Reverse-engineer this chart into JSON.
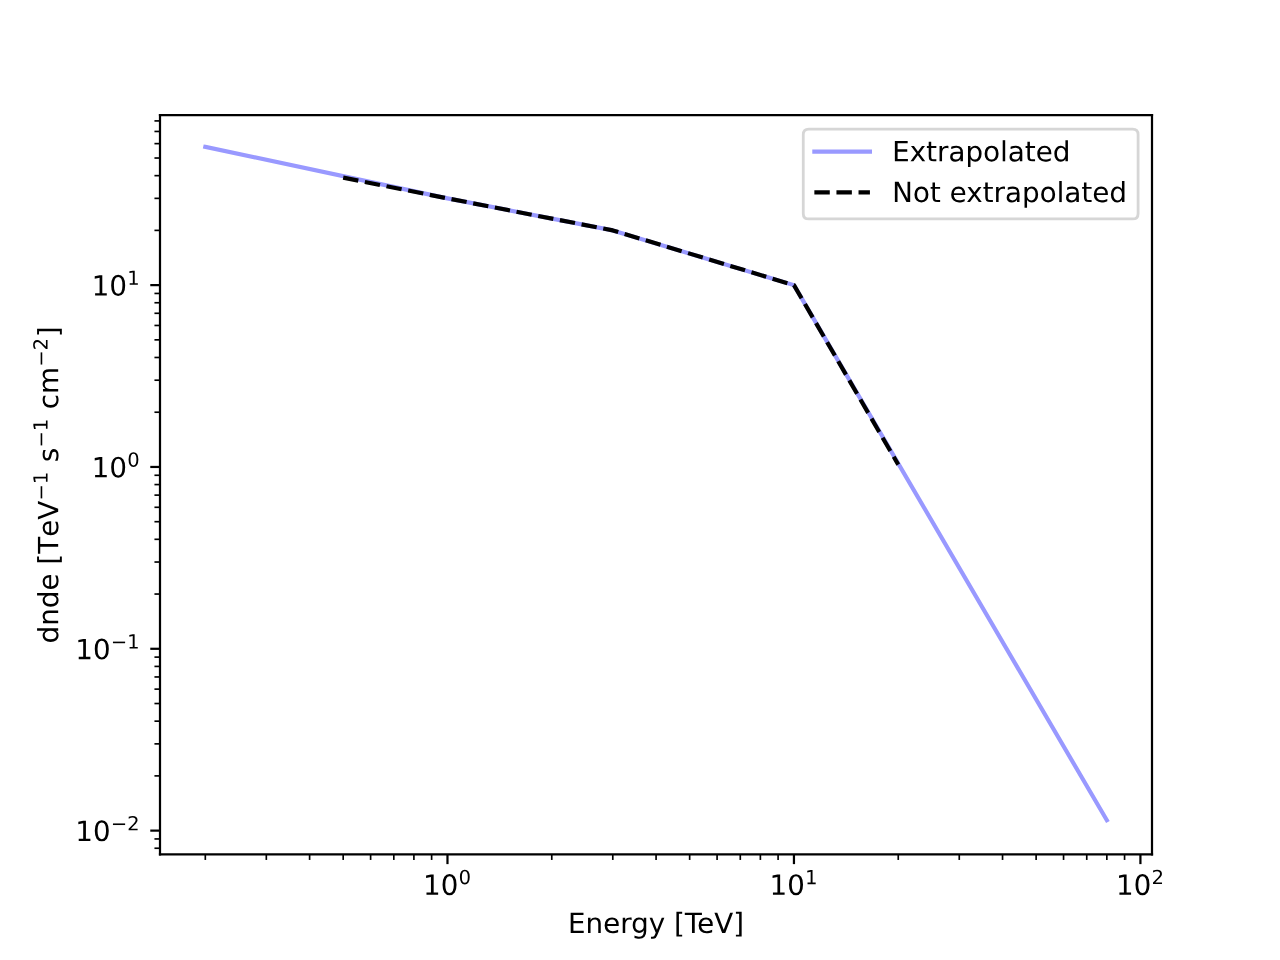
{
  "chart_data": {
    "type": "line",
    "xlabel": "Energy [TeV]",
    "ylabel": "dnde [TeV$^{−1}$ s$^{−1}$ cm$^{−2}$]",
    "log": "xy",
    "xlim": [
      0.148,
      108
    ],
    "ylim": [
      0.0074,
      86
    ],
    "xticks": [
      {
        "value": 1,
        "label": "10$^{0}$"
      },
      {
        "value": 10,
        "label": "10$^{1}$"
      },
      {
        "value": 100,
        "label": "10$^{2}$"
      }
    ],
    "yticks": [
      {
        "value": 0.01,
        "label": "10$^{−2}$"
      },
      {
        "value": 0.1,
        "label": "10$^{−1}$"
      },
      {
        "value": 1,
        "label": "10$^{0}$"
      },
      {
        "value": 10,
        "label": "10$^{1}$"
      }
    ],
    "legend": "top right",
    "grid": false,
    "series": [
      {
        "name": "Extrapolated",
        "color": "#9999ff",
        "line_style": "solid",
        "x": [
          0.2,
          1,
          3,
          10,
          80
        ],
        "values": [
          57.6,
          30,
          20,
          10,
          0.0114
        ]
      },
      {
        "name": "Not extrapolated",
        "color": "#000000",
        "line_style": "dashed",
        "x": [
          0.5,
          1,
          3,
          10,
          20
        ],
        "values": [
          39,
          30,
          20,
          10,
          1.03
        ]
      }
    ]
  }
}
